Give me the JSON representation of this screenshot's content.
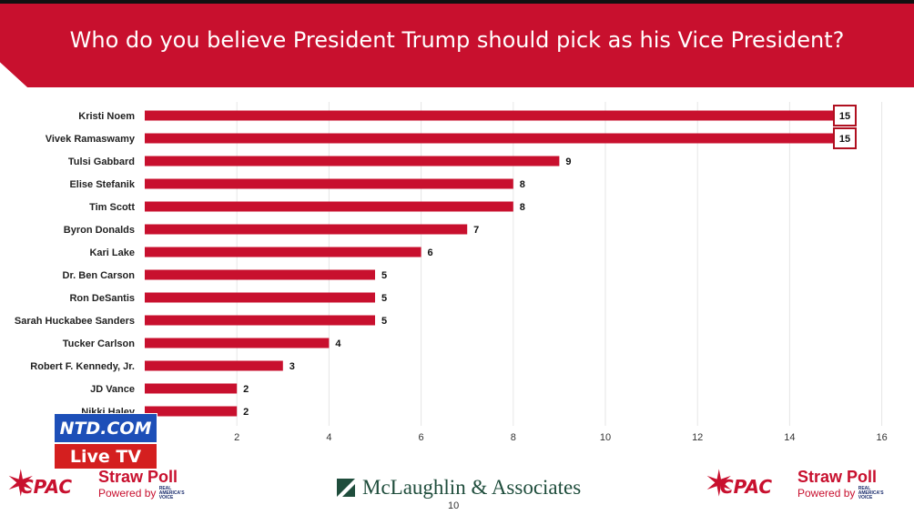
{
  "title": "Who do you believe President Trump should pick as his Vice President?",
  "chart_data": {
    "type": "bar",
    "orientation": "horizontal",
    "categories": [
      "Kristi Noem",
      "Vivek Ramaswamy",
      "Tulsi Gabbard",
      "Elise Stefanik",
      "Tim Scott",
      "Byron Donalds",
      "Kari Lake",
      "Dr. Ben Carson",
      "Ron DeSantis",
      "Sarah Huckabee Sanders",
      "Tucker Carlson",
      "Robert F. Kennedy, Jr.",
      "JD Vance",
      "Nikki Haley"
    ],
    "values": [
      15,
      15,
      9,
      8,
      8,
      7,
      6,
      5,
      5,
      5,
      4,
      3,
      2,
      2
    ],
    "highlighted": [
      "Kristi Noem",
      "Vivek Ramaswamy"
    ],
    "xlim": [
      0,
      16
    ],
    "xticks": [
      2,
      4,
      6,
      8,
      10,
      12,
      14,
      16
    ],
    "grid": true,
    "bar_color": "#c8102e"
  },
  "overlay": {
    "ntd_label": "NTD.COM",
    "live_label": "Live TV"
  },
  "footer": {
    "left_logo": {
      "brand": "CPAC",
      "title": "Straw Poll",
      "powered_by": "Powered by",
      "rav_line1": "REAL",
      "rav_line2": "AMERICA'S",
      "rav_line3": "VOICE"
    },
    "center_logo": "McLaughlin & Associates",
    "page_number": "10",
    "right_logo": {
      "brand": "CPAC",
      "title": "Straw Poll",
      "powered_by": "Powered by",
      "rav_line1": "REAL",
      "rav_line2": "AMERICA'S",
      "rav_line3": "VOICE"
    }
  },
  "colors": {
    "accent": "#c8102e",
    "ntd_blue": "#1d4fb8",
    "mclaughlin_green": "#1f4d3c"
  }
}
